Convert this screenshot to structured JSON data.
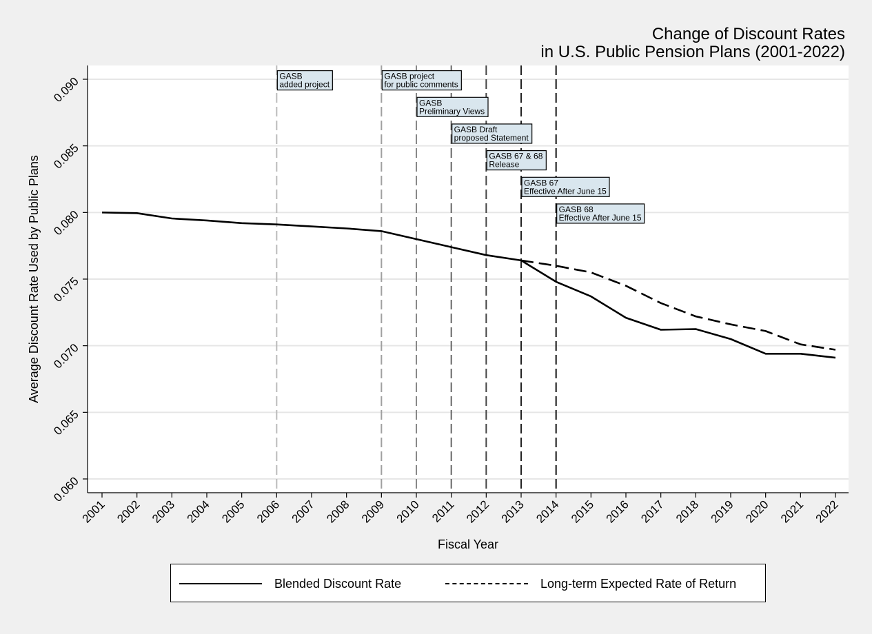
{
  "chart_data": {
    "type": "line",
    "title": [
      "Change of Discount Rates",
      "in U.S. Public Pension Plans (2001-2022)"
    ],
    "xlabel": "Fiscal Year",
    "ylabel": "Average Discount Rate Used by Public Plans",
    "xlim": [
      2001,
      2022
    ],
    "ylim": [
      0.06,
      0.09
    ],
    "yticks": [
      "0.060",
      "0.065",
      "0.070",
      "0.075",
      "0.080",
      "0.085",
      "0.090"
    ],
    "yticks_values": [
      0.06,
      0.065,
      0.07,
      0.075,
      0.08,
      0.085,
      0.09
    ],
    "x": [
      2001,
      2002,
      2003,
      2004,
      2005,
      2006,
      2007,
      2008,
      2009,
      2010,
      2011,
      2012,
      2013,
      2014,
      2015,
      2016,
      2017,
      2018,
      2019,
      2020,
      2021,
      2022
    ],
    "x_labels": [
      "2001",
      "2002",
      "2003",
      "2004",
      "2005",
      "2006",
      "2007",
      "2008",
      "2009",
      "2010",
      "2011",
      "2012",
      "2013",
      "2014",
      "2015",
      "2016",
      "2017",
      "2018",
      "2019",
      "2020",
      "2021",
      "2022"
    ],
    "grid": true,
    "legend_position": "bottom",
    "series": [
      {
        "name": "Blended Discount Rate",
        "style": "solid",
        "x": [
          2001,
          2002,
          2003,
          2004,
          2005,
          2006,
          2007,
          2008,
          2009,
          2010,
          2011,
          2012,
          2013,
          2014,
          2015,
          2016,
          2017,
          2018,
          2019,
          2020,
          2021,
          2022
        ],
        "values": [
          0.08,
          0.07995,
          0.07955,
          0.0794,
          0.0792,
          0.0791,
          0.07895,
          0.0788,
          0.0786,
          0.078,
          0.0774,
          0.0768,
          0.0764,
          0.0748,
          0.0737,
          0.0721,
          0.0712,
          0.07125,
          0.0705,
          0.0694,
          0.0694,
          0.0691
        ]
      },
      {
        "name": "Long-term Expected Rate of Return",
        "style": "dashed",
        "x": [
          2013,
          2014,
          2015,
          2016,
          2017,
          2018,
          2019,
          2020,
          2021,
          2022
        ],
        "values": [
          0.0764,
          0.076,
          0.0755,
          0.0745,
          0.0732,
          0.0722,
          0.0716,
          0.0711,
          0.0701,
          0.0697
        ]
      }
    ],
    "annotations": [
      {
        "x": 2006,
        "lines": [
          "GASB",
          "added project"
        ],
        "y": 0.0894,
        "line_color": "#bbbbbb"
      },
      {
        "x": 2009,
        "lines": [
          "GASB project",
          "for public comments"
        ],
        "y": 0.0894,
        "line_color": "#a0a0a0"
      },
      {
        "x": 2010,
        "lines": [
          "GASB",
          "Preliminary Views"
        ],
        "y": 0.0874,
        "line_color": "#888888"
      },
      {
        "x": 2011,
        "lines": [
          "GASB Draft",
          "proposed Statement"
        ],
        "y": 0.0854,
        "line_color": "#666666"
      },
      {
        "x": 2012,
        "lines": [
          "GASB 67 & 68",
          "Release"
        ],
        "y": 0.0834,
        "line_color": "#444444"
      },
      {
        "x": 2013,
        "lines": [
          "GASB 67",
          "Effective After June 15"
        ],
        "y": 0.0814,
        "line_color": "#222222"
      },
      {
        "x": 2014,
        "lines": [
          "GASB 68",
          "Effective After June 15"
        ],
        "y": 0.0794,
        "line_color": "#111111"
      }
    ]
  }
}
